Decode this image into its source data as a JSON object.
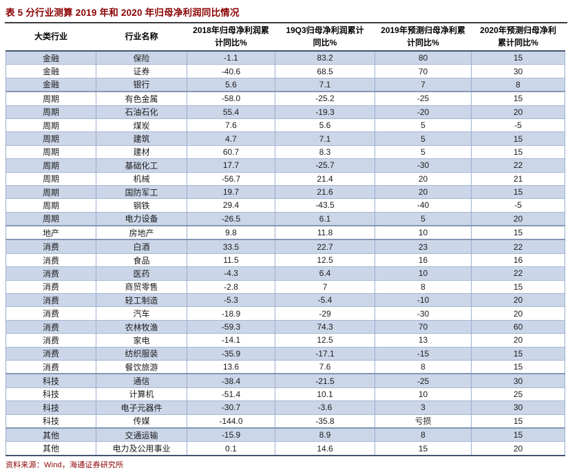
{
  "title": "表 5 分行业测算 2019 年和 2020 年归母净利润同比情况",
  "source_note": "资料来源：Wind，海通证券研究所",
  "colors": {
    "title_text": "#8b0000",
    "banded_row": "#ccd6e9",
    "grid_line": "#9aadcf",
    "group_divider": "#8496b4",
    "header_rule": "#43536f",
    "title_rule": "#3a3a3a",
    "body_text": "#1a1a1a"
  },
  "table": {
    "column_keys": [
      "category",
      "industry",
      "yoy-2018",
      "yoy-19q3",
      "forecast-2019",
      "forecast-2020"
    ],
    "columns": [
      {
        "label": "大类行业"
      },
      {
        "label": "行业名称"
      },
      {
        "label": "2018年归母净利润累\n计同比%"
      },
      {
        "label": "19Q3归母净利润累计\n同比%"
      },
      {
        "label": "2019年预测归母净利累\n计同比%"
      },
      {
        "label": "2020年预测归母净利\n累计同比%"
      }
    ],
    "group_end_rows": [
      3,
      13,
      14,
      24,
      28
    ],
    "rows": [
      [
        "金融",
        "保险",
        "-1.1",
        "83.2",
        "80",
        "15"
      ],
      [
        "金融",
        "证券",
        "-40.6",
        "68.5",
        "70",
        "30"
      ],
      [
        "金融",
        "银行",
        "5.6",
        "7.1",
        "7",
        "8"
      ],
      [
        "周期",
        "有色金属",
        "-58.0",
        "-25.2",
        "-25",
        "15"
      ],
      [
        "周期",
        "石油石化",
        "55.4",
        "-19.3",
        "-20",
        "20"
      ],
      [
        "周期",
        "煤炭",
        "7.6",
        "5.6",
        "5",
        "-5"
      ],
      [
        "周期",
        "建筑",
        "4.7",
        "7.1",
        "5",
        "15"
      ],
      [
        "周期",
        "建材",
        "60.7",
        "8.3",
        "5",
        "15"
      ],
      [
        "周期",
        "基础化工",
        "17.7",
        "-25.7",
        "-30",
        "22"
      ],
      [
        "周期",
        "机械",
        "-56.7",
        "21.4",
        "20",
        "21"
      ],
      [
        "周期",
        "国防军工",
        "19.7",
        "21.6",
        "20",
        "15"
      ],
      [
        "周期",
        "钢铁",
        "29.4",
        "-43.5",
        "-40",
        "-5"
      ],
      [
        "周期",
        "电力设备",
        "-26.5",
        "6.1",
        "5",
        "20"
      ],
      [
        "地产",
        "房地产",
        "9.8",
        "11.8",
        "10",
        "15"
      ],
      [
        "消费",
        "白酒",
        "33.5",
        "22.7",
        "23",
        "22"
      ],
      [
        "消费",
        "食品",
        "11.5",
        "12.5",
        "16",
        "16"
      ],
      [
        "消费",
        "医药",
        "-4.3",
        "6.4",
        "10",
        "22"
      ],
      [
        "消费",
        "商贸零售",
        "-2.8",
        "7",
        "8",
        "15"
      ],
      [
        "消费",
        "轻工制造",
        "-5.3",
        "-5.4",
        "-10",
        "20"
      ],
      [
        "消费",
        "汽车",
        "-18.9",
        "-29",
        "-30",
        "20"
      ],
      [
        "消费",
        "农林牧渔",
        "-59.3",
        "74.3",
        "70",
        "60"
      ],
      [
        "消费",
        "家电",
        "-14.1",
        "12.5",
        "13",
        "20"
      ],
      [
        "消费",
        "纺织服装",
        "-35.9",
        "-17.1",
        "-15",
        "15"
      ],
      [
        "消费",
        "餐饮旅游",
        "13.6",
        "7.6",
        "8",
        "15"
      ],
      [
        "科技",
        "通信",
        "-38.4",
        "-21.5",
        "-25",
        "30"
      ],
      [
        "科技",
        "计算机",
        "-51.4",
        "10.1",
        "10",
        "25"
      ],
      [
        "科技",
        "电子元器件",
        "-30.7",
        "-3.6",
        "3",
        "30"
      ],
      [
        "科技",
        "传媒",
        "-144.0",
        "-35.8",
        "亏损",
        "15"
      ],
      [
        "其他",
        "交通运输",
        "-15.9",
        "8.9",
        "8",
        "15"
      ],
      [
        "其他",
        "电力及公用事业",
        "0.1",
        "14.6",
        "15",
        "20"
      ]
    ]
  }
}
